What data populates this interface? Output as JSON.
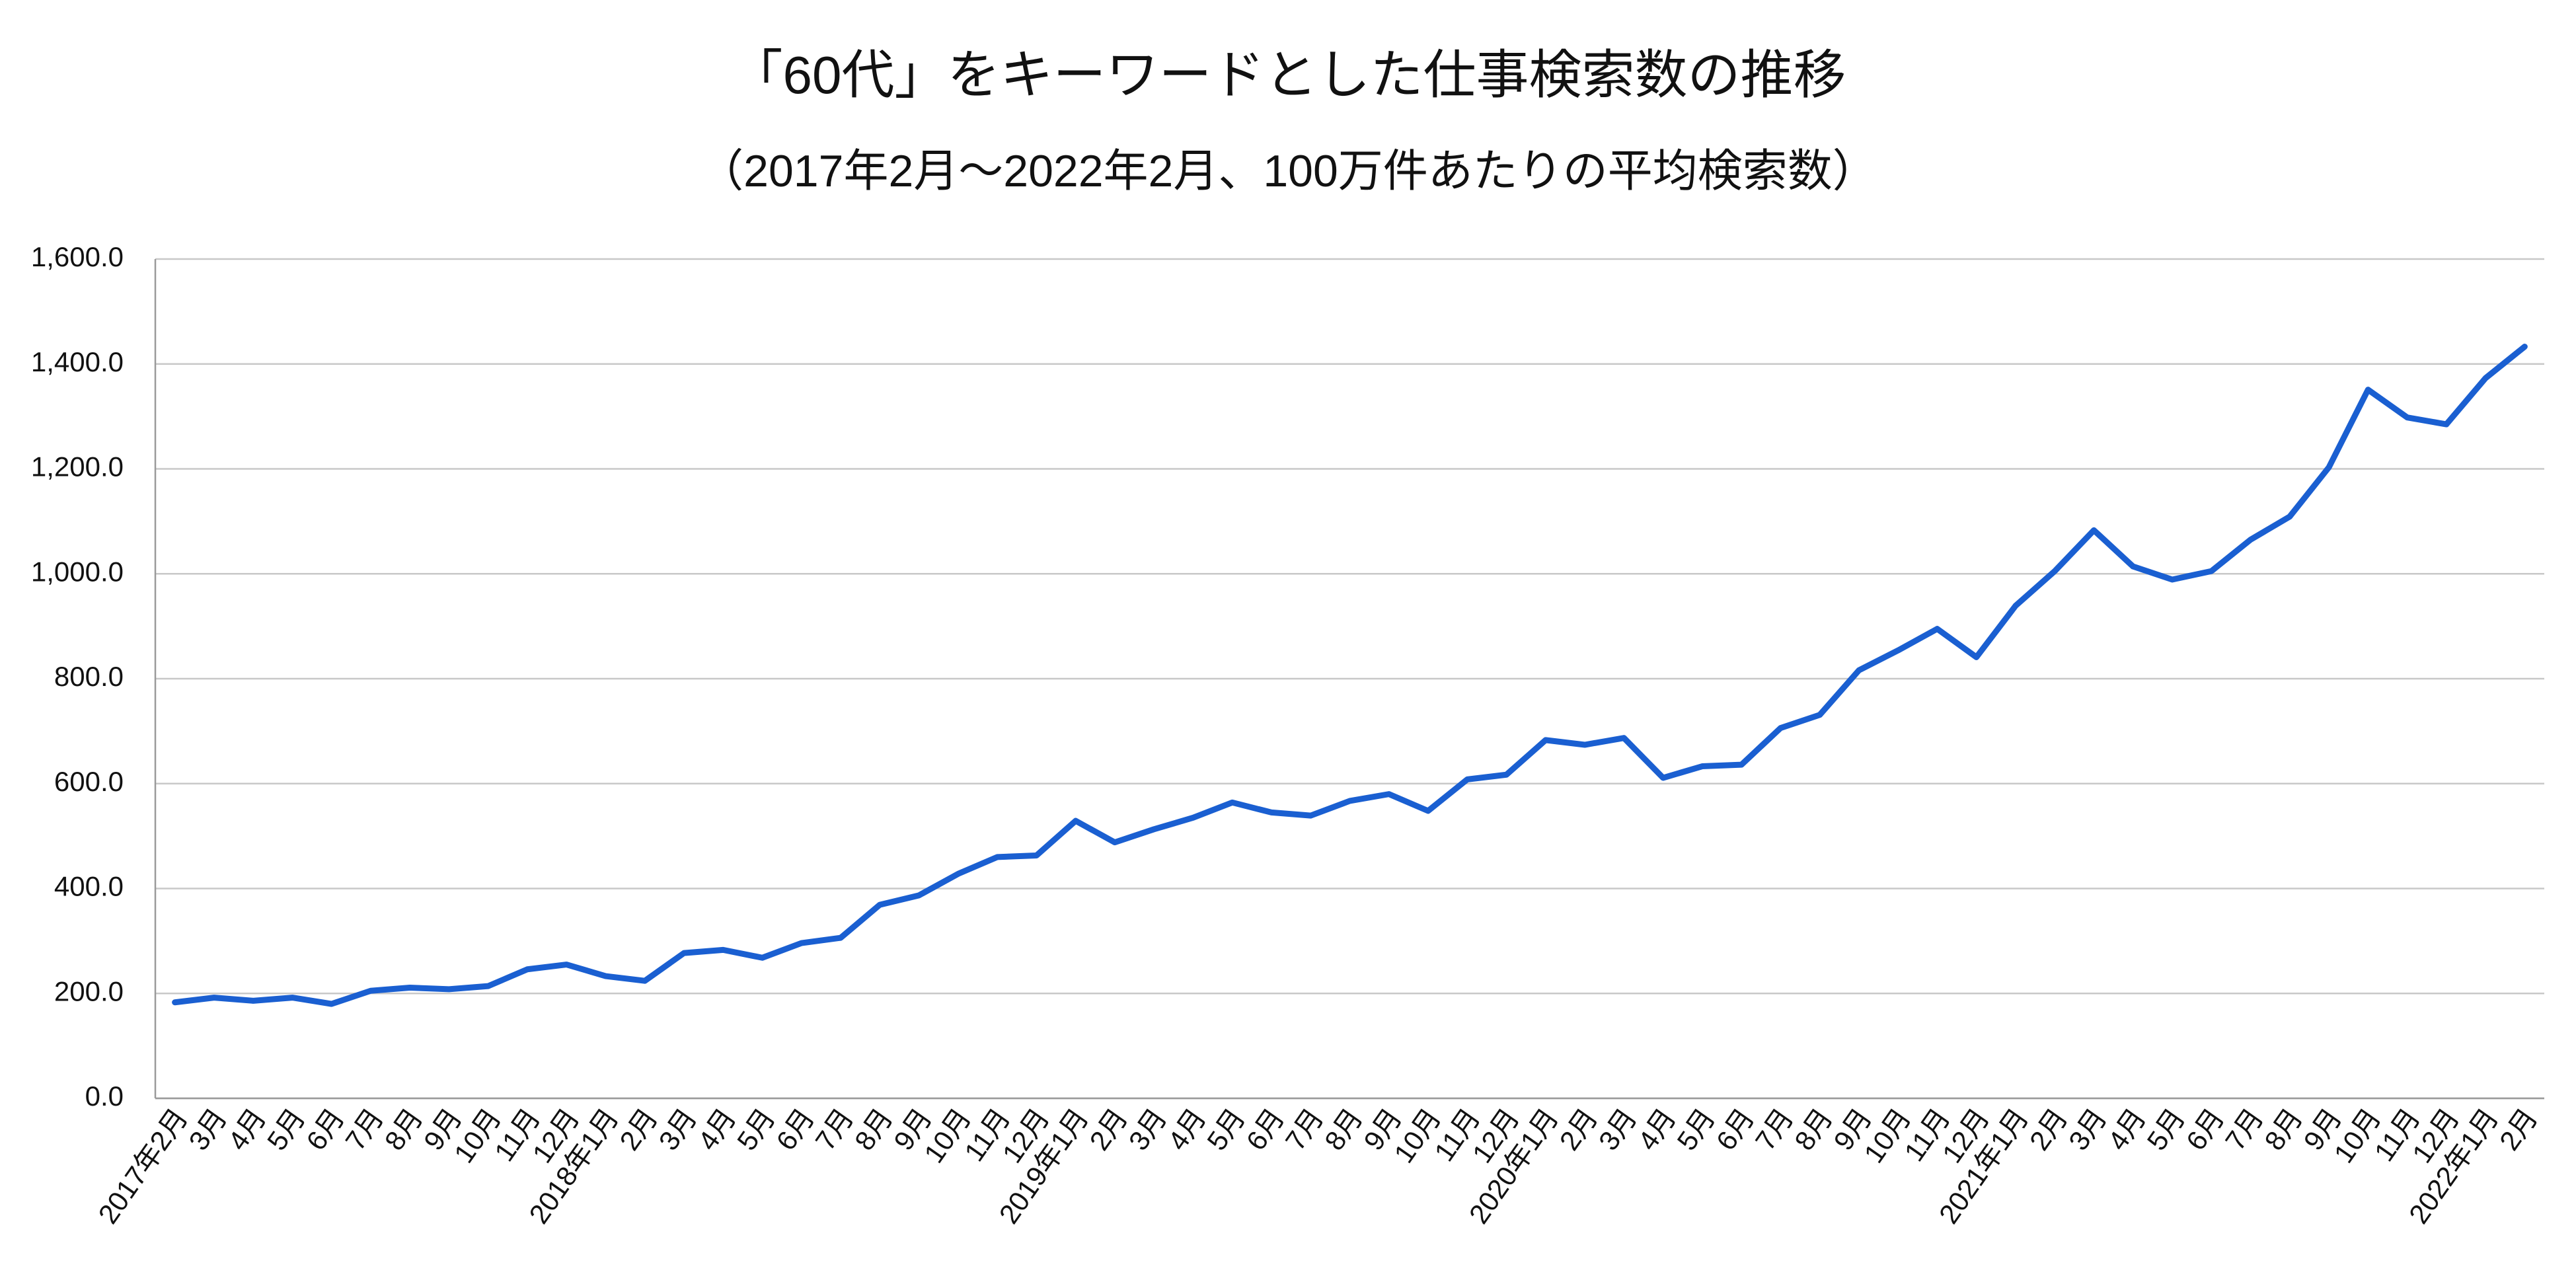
{
  "chart_data": {
    "type": "line",
    "title": "「60代」をキーワードとした仕事検索数の推移",
    "subtitle": "（2017年2月～2022年2月、100万件あたりの平均検索数）",
    "categories": [
      "2017年2月",
      "3月",
      "4月",
      "5月",
      "6月",
      "7月",
      "8月",
      "9月",
      "10月",
      "11月",
      "12月",
      "2018年1月",
      "2月",
      "3月",
      "4月",
      "5月",
      "6月",
      "7月",
      "8月",
      "9月",
      "10月",
      "11月",
      "12月",
      "2019年1月",
      "2月",
      "3月",
      "4月",
      "5月",
      "6月",
      "7月",
      "8月",
      "9月",
      "10月",
      "11月",
      "12月",
      "2020年1月",
      "2月",
      "3月",
      "4月",
      "5月",
      "6月",
      "7月",
      "8月",
      "9月",
      "10月",
      "11月",
      "12月",
      "2021年1月",
      "2月",
      "3月",
      "4月",
      "5月",
      "6月",
      "7月",
      "8月",
      "9月",
      "10月",
      "11月",
      "12月",
      "2022年1月",
      "2月"
    ],
    "series": [
      {
        "color": "#1a5fd1",
        "values": [
          183,
          192,
          186,
          192,
          180,
          205,
          211,
          208,
          214,
          246,
          255,
          233,
          224,
          277,
          283,
          268,
          296,
          306,
          369,
          387,
          428,
          460,
          463,
          529,
          488,
          513,
          535,
          564,
          545,
          539,
          567,
          580,
          548,
          608,
          617,
          683,
          674,
          687,
          611,
          633,
          636,
          706,
          731,
          816,
          854,
          895,
          841,
          939,
          1005,
          1083,
          1014,
          989,
          1005,
          1065,
          1109,
          1203,
          1351,
          1298,
          1285,
          1373,
          1433
        ]
      }
    ],
    "ylim": [
      0,
      1600
    ],
    "yticks": [
      {
        "value": 0,
        "label": "0.0"
      },
      {
        "value": 200,
        "label": "200.0"
      },
      {
        "value": 400,
        "label": "400.0"
      },
      {
        "value": 600,
        "label": "600.0"
      },
      {
        "value": 800,
        "label": "800.0"
      },
      {
        "value": 1000,
        "label": "1,000.0"
      },
      {
        "value": 1200,
        "label": "1,200.0"
      },
      {
        "value": 1400,
        "label": "1,400.0"
      },
      {
        "value": 1600,
        "label": "1,600.0"
      }
    ],
    "grid": true
  }
}
